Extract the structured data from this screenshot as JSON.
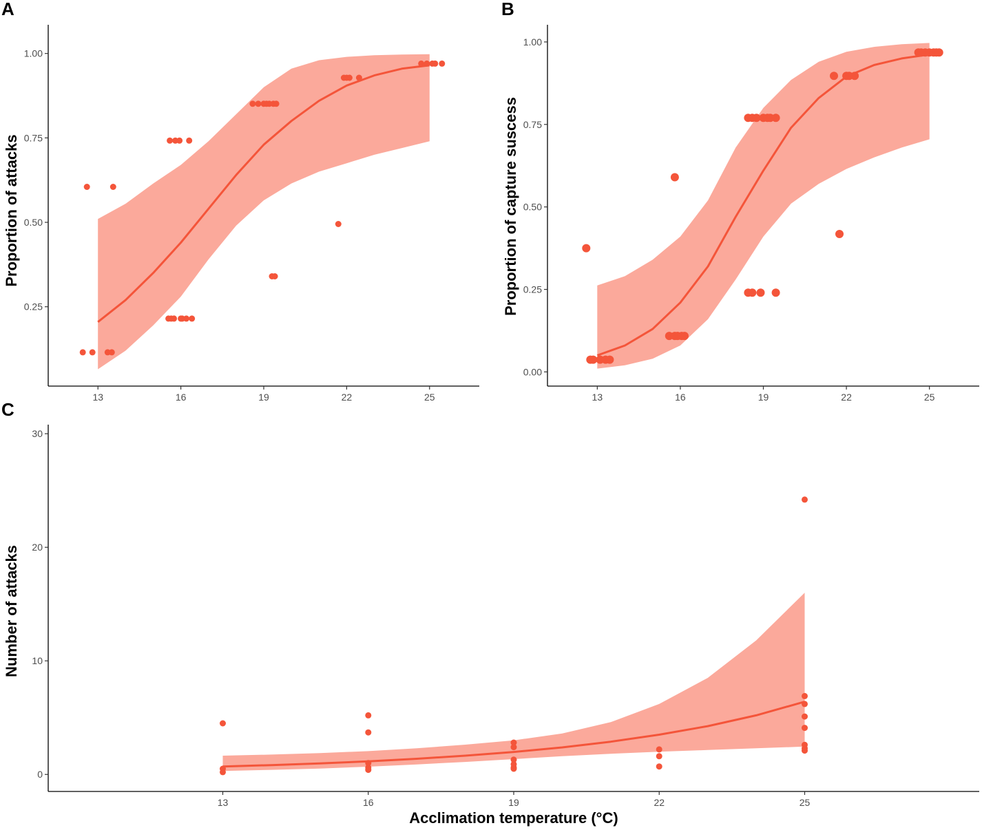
{
  "colors": {
    "line": "#f4553a",
    "band": "#fba99b",
    "point": "#f4553a",
    "axis": "#000000",
    "tick_text": "#4d4d4d"
  },
  "chart_data": [
    {
      "panel": "A",
      "type": "scatter",
      "title": "",
      "xlabel": "",
      "ylabel": "Proportion of attacks",
      "xlim": [
        11.2,
        26.8
      ],
      "ylim": [
        0.015,
        1.085
      ],
      "xticks": [
        13,
        16,
        19,
        22,
        25
      ],
      "xtick_labels": [
        "13",
        "16",
        "19",
        "22",
        "25"
      ],
      "yticks": [
        0.25,
        0.5,
        0.75,
        1.0
      ],
      "ytick_labels": [
        "0.25",
        "0.50",
        "0.75",
        "1.00"
      ],
      "point_size": "small",
      "fit": {
        "x": [
          13,
          14,
          15,
          16,
          17,
          18,
          19,
          20,
          21,
          22,
          23,
          24,
          25
        ],
        "y": [
          0.205,
          0.27,
          0.35,
          0.44,
          0.54,
          0.64,
          0.73,
          0.8,
          0.86,
          0.905,
          0.935,
          0.955,
          0.965
        ],
        "lower": [
          0.065,
          0.12,
          0.195,
          0.28,
          0.39,
          0.49,
          0.565,
          0.615,
          0.65,
          0.675,
          0.7,
          0.72,
          0.74
        ],
        "upper": [
          0.51,
          0.555,
          0.615,
          0.67,
          0.74,
          0.82,
          0.9,
          0.955,
          0.98,
          0.99,
          0.995,
          0.997,
          0.998
        ]
      },
      "points": {
        "x": [
          12.45,
          12.6,
          12.8,
          13.35,
          13.5,
          13.55,
          15.6,
          15.65,
          15.75,
          15.55,
          15.8,
          15.95,
          16.0,
          16.05,
          16.2,
          16.3,
          16.4,
          18.6,
          18.8,
          19.0,
          19.1,
          19.2,
          19.35,
          19.45,
          19.3,
          19.4,
          21.9,
          22.0,
          22.1,
          22.45,
          21.7,
          24.7,
          24.9,
          25.1,
          25.2,
          25.45
        ],
        "y": [
          0.115,
          0.605,
          0.115,
          0.115,
          0.115,
          0.605,
          0.742,
          0.215,
          0.215,
          0.215,
          0.742,
          0.742,
          0.215,
          0.215,
          0.215,
          0.742,
          0.215,
          0.851,
          0.851,
          0.851,
          0.851,
          0.851,
          0.851,
          0.851,
          0.34,
          0.34,
          0.928,
          0.928,
          0.928,
          0.928,
          0.495,
          0.97,
          0.97,
          0.97,
          0.97,
          0.97
        ]
      }
    },
    {
      "panel": "B",
      "type": "scatter",
      "title": "",
      "xlabel": "",
      "ylabel": "Proportion of capture suscess",
      "xlim": [
        11.2,
        26.8
      ],
      "ylim": [
        -0.043,
        1.052
      ],
      "xticks": [
        13,
        16,
        19,
        22,
        25
      ],
      "xtick_labels": [
        "13",
        "16",
        "19",
        "22",
        "25"
      ],
      "yticks": [
        0.0,
        0.25,
        0.5,
        0.75,
        1.0
      ],
      "ytick_labels": [
        "0.00",
        "0.25",
        "0.50",
        "0.75",
        "1.00"
      ],
      "point_size": "large",
      "fit": {
        "x": [
          13,
          14,
          15,
          16,
          17,
          18,
          19,
          20,
          21,
          22,
          23,
          24,
          25
        ],
        "y": [
          0.05,
          0.08,
          0.13,
          0.21,
          0.32,
          0.47,
          0.61,
          0.74,
          0.83,
          0.895,
          0.93,
          0.95,
          0.962
        ],
        "lower": [
          0.01,
          0.02,
          0.04,
          0.08,
          0.16,
          0.28,
          0.41,
          0.51,
          0.57,
          0.615,
          0.65,
          0.68,
          0.705
        ],
        "upper": [
          0.262,
          0.29,
          0.34,
          0.41,
          0.52,
          0.68,
          0.8,
          0.885,
          0.94,
          0.97,
          0.985,
          0.993,
          0.997
        ]
      },
      "points": {
        "x": [
          12.6,
          12.75,
          12.85,
          13.1,
          13.3,
          13.45,
          15.6,
          15.8,
          15.9,
          16.05,
          16.15,
          15.8,
          18.45,
          18.6,
          18.75,
          19.0,
          19.15,
          19.25,
          19.45,
          18.45,
          18.6,
          18.9,
          19.45,
          21.55,
          22.0,
          22.1,
          22.3,
          21.75,
          24.6,
          24.7,
          24.85,
          25.0,
          25.15,
          25.25,
          25.35
        ],
        "y": [
          0.375,
          0.037,
          0.037,
          0.037,
          0.037,
          0.037,
          0.109,
          0.109,
          0.109,
          0.109,
          0.109,
          0.59,
          0.77,
          0.77,
          0.77,
          0.77,
          0.77,
          0.77,
          0.77,
          0.24,
          0.24,
          0.24,
          0.24,
          0.897,
          0.897,
          0.897,
          0.897,
          0.418,
          0.968,
          0.968,
          0.968,
          0.968,
          0.968,
          0.968,
          0.968
        ]
      }
    },
    {
      "panel": "C",
      "type": "scatter",
      "title": "",
      "xlabel": "Acclimation temperature (°C)",
      "ylabel": "Number of attacks",
      "xlim": [
        9.4,
        28.6
      ],
      "ylim": [
        -1.5,
        30.8
      ],
      "xticks": [
        13,
        16,
        19,
        22,
        25
      ],
      "xtick_labels": [
        "13",
        "16",
        "19",
        "22",
        "25"
      ],
      "yticks": [
        0,
        10,
        20,
        30
      ],
      "ytick_labels": [
        "0",
        "10",
        "20",
        "30"
      ],
      "point_size": "small",
      "fit": {
        "x": [
          13,
          14,
          15,
          16,
          17,
          18,
          19,
          20,
          21,
          22,
          23,
          24,
          25
        ],
        "y": [
          0.7,
          0.82,
          0.97,
          1.15,
          1.38,
          1.65,
          1.98,
          2.38,
          2.88,
          3.5,
          4.25,
          5.2,
          6.4
        ],
        "lower": [
          0.3,
          0.4,
          0.52,
          0.68,
          0.88,
          1.1,
          1.35,
          1.6,
          1.82,
          2.0,
          2.15,
          2.3,
          2.45
        ],
        "upper": [
          1.65,
          1.75,
          1.88,
          2.05,
          2.3,
          2.62,
          3.0,
          3.6,
          4.6,
          6.2,
          8.5,
          11.8,
          16.0
        ]
      },
      "points": {
        "x": [
          13,
          13,
          13,
          16,
          16,
          16,
          16,
          16,
          19,
          19,
          19,
          19,
          19,
          19,
          22,
          22,
          22,
          25,
          25,
          25,
          25,
          25,
          25,
          25,
          25
        ],
        "y": [
          4.5,
          0.5,
          0.2,
          5.2,
          3.7,
          1.0,
          0.6,
          0.4,
          2.8,
          2.4,
          1.3,
          0.9,
          0.6,
          0.5,
          2.2,
          1.6,
          0.7,
          24.2,
          6.9,
          6.2,
          5.1,
          4.1,
          2.6,
          2.3,
          2.1
        ]
      }
    }
  ]
}
